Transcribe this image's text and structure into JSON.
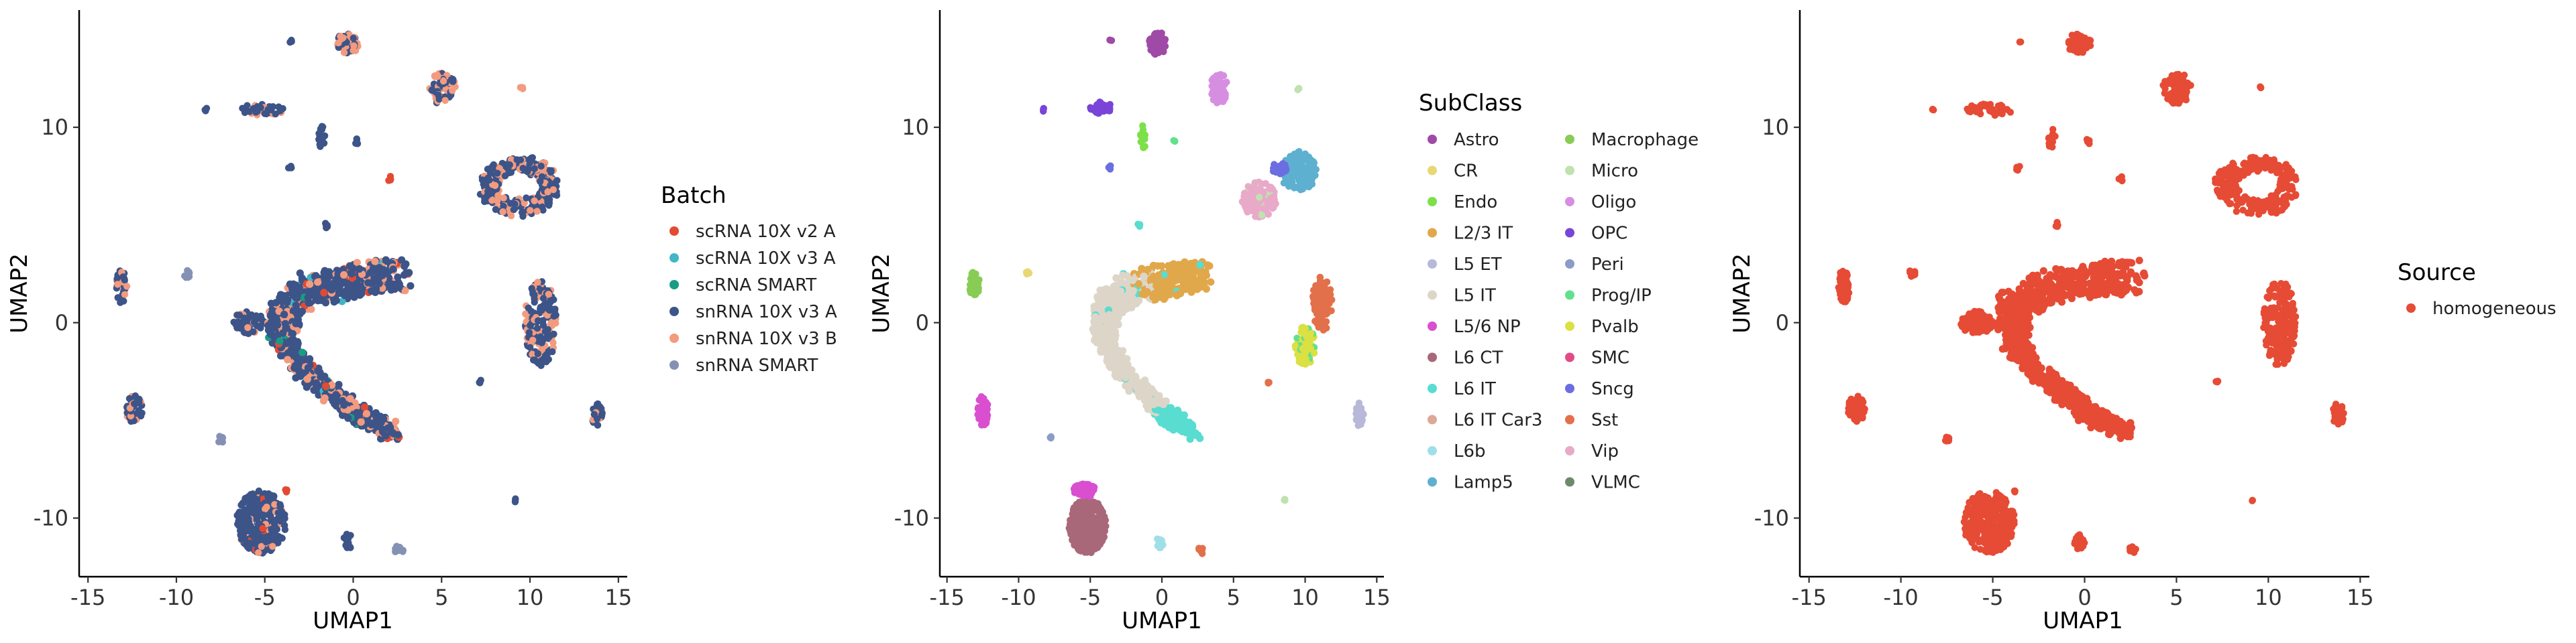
{
  "chart_data": [
    {
      "type": "scatter",
      "xlabel": "UMAP1",
      "ylabel": "UMAP2",
      "xlim": [
        -15.5,
        15.5
      ],
      "ylim": [
        -13.0,
        16.0
      ],
      "x_ticks": [
        -15,
        -10,
        -5,
        0,
        5,
        10,
        15
      ],
      "x_tick_labels": [
        "-15",
        "-10",
        "-5",
        "0",
        "5",
        "10",
        "15"
      ],
      "y_ticks": [
        -10,
        0,
        10
      ],
      "y_tick_labels": [
        "-10",
        "0",
        "10"
      ],
      "grid": false,
      "legend_position": "right",
      "legend_title": "Batch",
      "legend_columns": 1,
      "series": [
        {
          "name": "scRNA 10X v2 A",
          "color": "#e34a33"
        },
        {
          "name": "scRNA 10X v3 A",
          "color": "#41b6c4"
        },
        {
          "name": "scRNA SMART",
          "color": "#1a9b84"
        },
        {
          "name": "snRNA 10X v3 A",
          "color": "#3c5488"
        },
        {
          "name": "snRNA 10X v3 B",
          "color": "#f39b7f"
        },
        {
          "name": "snRNA SMART",
          "color": "#8491b4"
        }
      ],
      "base_color": "#3c5488",
      "clusters": [
        {
          "type": "blob",
          "cx": -5.2,
          "cy": -10.2,
          "rx": 1.4,
          "ry": 1.6,
          "color": "#3c5488",
          "n": 320,
          "accents": [
            [
              "#f39b7f",
              0.12
            ],
            [
              "#e34a33",
              0.03
            ]
          ]
        },
        {
          "type": "blob",
          "cx": -5.9,
          "cy": 0.0,
          "rx": 0.9,
          "ry": 0.6,
          "color": "#3c5488",
          "n": 80,
          "accents": [
            [
              "#f39b7f",
              0.1
            ]
          ]
        },
        {
          "type": "blob",
          "cx": -12.4,
          "cy": -4.4,
          "rx": 0.5,
          "ry": 0.7,
          "color": "#3c5488",
          "n": 50,
          "accents": [
            [
              "#f39b7f",
              0.2
            ]
          ]
        },
        {
          "type": "blob",
          "cx": -13.1,
          "cy": 1.9,
          "rx": 0.3,
          "ry": 0.9,
          "color": "#3c5488",
          "n": 40,
          "accents": [
            [
              "#f39b7f",
              0.3
            ]
          ]
        },
        {
          "type": "blob",
          "cx": -0.3,
          "cy": 14.3,
          "rx": 0.7,
          "ry": 0.5,
          "color": "#f39b7f",
          "n": 60,
          "accents": [
            [
              "#3c5488",
              0.4
            ]
          ]
        },
        {
          "type": "blob",
          "cx": 5.0,
          "cy": 12.0,
          "rx": 0.8,
          "ry": 0.8,
          "color": "#f39b7f",
          "n": 70,
          "accents": [
            [
              "#3c5488",
              0.4
            ]
          ]
        },
        {
          "type": "ring",
          "cx": 9.4,
          "cy": 7.0,
          "rx": 2.3,
          "ry": 1.5,
          "w": 0.5,
          "color": "#3c5488",
          "n": 260,
          "accents": [
            [
              "#f39b7f",
              0.35
            ]
          ]
        },
        {
          "type": "blob",
          "cx": 10.6,
          "cy": 0.0,
          "rx": 0.9,
          "ry": 2.2,
          "color": "#3c5488",
          "n": 190,
          "accents": [
            [
              "#f39b7f",
              0.3
            ]
          ]
        },
        {
          "type": "blob",
          "cx": 13.8,
          "cy": -4.7,
          "rx": 0.3,
          "ry": 0.6,
          "color": "#3c5488",
          "n": 30,
          "accents": [
            [
              "#f39b7f",
              0.2
            ]
          ]
        },
        {
          "type": "blob",
          "cx": -5.2,
          "cy": 10.9,
          "rx": 1.3,
          "ry": 0.3,
          "color": "#3c5488",
          "n": 40,
          "accents": [
            [
              "#f39b7f",
              0.3
            ]
          ]
        },
        {
          "type": "blob",
          "cx": -1.8,
          "cy": 9.5,
          "rx": 0.2,
          "ry": 0.6,
          "color": "#3c5488",
          "n": 14,
          "accents": []
        },
        {
          "type": "blob",
          "cx": -0.3,
          "cy": -11.2,
          "rx": 0.3,
          "ry": 0.4,
          "color": "#3c5488",
          "n": 14,
          "accents": []
        },
        {
          "type": "blob",
          "cx": 2.6,
          "cy": -11.6,
          "rx": 0.3,
          "ry": 0.2,
          "color": "#8491b4",
          "n": 10,
          "accents": []
        },
        {
          "type": "blob",
          "cx": -9.4,
          "cy": 2.5,
          "rx": 0.2,
          "ry": 0.2,
          "color": "#8491b4",
          "n": 8,
          "accents": []
        },
        {
          "type": "blob",
          "cx": -7.5,
          "cy": -6.0,
          "rx": 0.15,
          "ry": 0.2,
          "color": "#8491b4",
          "n": 6,
          "accents": []
        },
        {
          "type": "blob",
          "cx": 0.2,
          "cy": 9.3,
          "rx": 0.15,
          "ry": 0.15,
          "color": "#3c5488",
          "n": 4,
          "accents": []
        },
        {
          "type": "blob",
          "cx": -3.6,
          "cy": 7.9,
          "rx": 0.15,
          "ry": 0.15,
          "color": "#3c5488",
          "n": 4,
          "accents": []
        },
        {
          "type": "blob",
          "cx": 2.0,
          "cy": 7.4,
          "rx": 0.15,
          "ry": 0.15,
          "color": "#e34a33",
          "n": 4,
          "accents": []
        },
        {
          "type": "blob",
          "cx": -1.5,
          "cy": 5.0,
          "rx": 0.1,
          "ry": 0.15,
          "color": "#3c5488",
          "n": 3,
          "accents": []
        },
        {
          "type": "blob",
          "cx": -1.5,
          "cy": 4.9,
          "rx": 0.1,
          "ry": 0.1,
          "color": "#3c5488",
          "n": 3,
          "accents": []
        },
        {
          "type": "blob",
          "cx": 9.2,
          "cy": -9.1,
          "rx": 0.1,
          "ry": 0.1,
          "color": "#3c5488",
          "n": 3,
          "accents": []
        },
        {
          "type": "blob",
          "cx": 7.2,
          "cy": -3.0,
          "rx": 0.1,
          "ry": 0.1,
          "color": "#3c5488",
          "n": 3,
          "accents": []
        },
        {
          "type": "blob",
          "cx": 9.5,
          "cy": 12.0,
          "rx": 0.1,
          "ry": 0.1,
          "color": "#f39b7f",
          "n": 3,
          "accents": []
        },
        {
          "type": "blob",
          "cx": -8.3,
          "cy": 10.9,
          "rx": 0.1,
          "ry": 0.1,
          "color": "#3c5488",
          "n": 3,
          "accents": []
        },
        {
          "type": "blob",
          "cx": -3.5,
          "cy": 14.4,
          "rx": 0.1,
          "ry": 0.1,
          "color": "#3c5488",
          "n": 3,
          "accents": []
        },
        {
          "type": "blob",
          "cx": -3.8,
          "cy": -8.6,
          "rx": 0.1,
          "ry": 0.1,
          "color": "#e34a33",
          "n": 3,
          "accents": []
        }
      ],
      "arm": {
        "color": "#3c5488",
        "accents": [
          [
            "#f39b7f",
            0.2
          ],
          [
            "#e34a33",
            0.04
          ],
          [
            "#1a9b84",
            0.02
          ],
          [
            "#41b6c4",
            0.02
          ]
        ]
      }
    },
    {
      "type": "scatter",
      "xlabel": "UMAP1",
      "ylabel": "UMAP2",
      "xlim": [
        -15.5,
        15.5
      ],
      "ylim": [
        -13.0,
        16.0
      ],
      "x_ticks": [
        -15,
        -10,
        -5,
        0,
        5,
        10,
        15
      ],
      "x_tick_labels": [
        "-15",
        "-10",
        "-5",
        "0",
        "5",
        "10",
        "15"
      ],
      "y_ticks": [
        -10,
        0,
        10
      ],
      "y_tick_labels": [
        "-10",
        "0",
        "10"
      ],
      "grid": false,
      "legend_position": "right",
      "legend_title": "SubClass",
      "legend_columns": 2,
      "series": [
        {
          "name": "Astro",
          "color": "#9e4aa6"
        },
        {
          "name": "CR",
          "color": "#e8d873"
        },
        {
          "name": "Endo",
          "color": "#7ce04a"
        },
        {
          "name": "L2/3 IT",
          "color": "#e1a84b"
        },
        {
          "name": "L5 ET",
          "color": "#b8b8d8"
        },
        {
          "name": "L5 IT",
          "color": "#ddd6c8"
        },
        {
          "name": "L5/6 NP",
          "color": "#d94fd0"
        },
        {
          "name": "L6 CT",
          "color": "#a8687a"
        },
        {
          "name": "L6 IT",
          "color": "#58ddd0"
        },
        {
          "name": "L6 IT Car3",
          "color": "#dca898"
        },
        {
          "name": "L6b",
          "color": "#9fe0e8"
        },
        {
          "name": "Lamp5",
          "color": "#5db0d0"
        },
        {
          "name": "Macrophage",
          "color": "#88cc55"
        },
        {
          "name": "Micro",
          "color": "#bfe2b0"
        },
        {
          "name": "Oligo",
          "color": "#d68fe0"
        },
        {
          "name": "OPC",
          "color": "#7a44d8"
        },
        {
          "name": "Peri",
          "color": "#8a9cc8"
        },
        {
          "name": "Prog/IP",
          "color": "#62e08e"
        },
        {
          "name": "Pvalb",
          "color": "#dbe043"
        },
        {
          "name": "SMC",
          "color": "#e34a88"
        },
        {
          "name": "Sncg",
          "color": "#6a6ee0"
        },
        {
          "name": "Sst",
          "color": "#e2704b"
        },
        {
          "name": "Vip",
          "color": "#e8aac8"
        },
        {
          "name": "VLMC",
          "color": "#6e8a6c"
        }
      ],
      "clusters": [
        {
          "type": "blob",
          "cx": -5.2,
          "cy": -10.4,
          "rx": 1.3,
          "ry": 1.4,
          "color": "#a8687a",
          "n": 300,
          "accents": []
        },
        {
          "type": "blob",
          "cx": -5.4,
          "cy": -8.6,
          "rx": 0.8,
          "ry": 0.35,
          "color": "#d94fd0",
          "n": 60,
          "accents": []
        },
        {
          "type": "blob",
          "cx": -12.5,
          "cy": -4.5,
          "rx": 0.4,
          "ry": 0.8,
          "color": "#d94fd0",
          "n": 50,
          "accents": []
        },
        {
          "type": "blob",
          "cx": -13.1,
          "cy": 2.0,
          "rx": 0.4,
          "ry": 0.6,
          "color": "#88cc55",
          "n": 40,
          "accents": []
        },
        {
          "type": "blob",
          "cx": -0.3,
          "cy": 14.3,
          "rx": 0.6,
          "ry": 0.6,
          "color": "#9e4aa6",
          "n": 60,
          "accents": []
        },
        {
          "type": "blob",
          "cx": 4.0,
          "cy": 12.0,
          "rx": 0.6,
          "ry": 0.8,
          "color": "#d68fe0",
          "n": 60,
          "accents": []
        },
        {
          "type": "blob",
          "cx": -4.2,
          "cy": 11.0,
          "rx": 0.8,
          "ry": 0.3,
          "color": "#7a44d8",
          "n": 35,
          "accents": []
        },
        {
          "type": "blob",
          "cx": -1.3,
          "cy": 9.5,
          "rx": 0.2,
          "ry": 0.6,
          "color": "#7ce04a",
          "n": 14,
          "accents": []
        },
        {
          "type": "blob",
          "cx": 6.8,
          "cy": 6.3,
          "rx": 1.2,
          "ry": 0.9,
          "color": "#e8aac8",
          "n": 120,
          "accents": [
            [
              "#bfe2b0",
              0.1
            ]
          ]
        },
        {
          "type": "blob",
          "cx": 9.5,
          "cy": 7.8,
          "rx": 1.3,
          "ry": 1.1,
          "color": "#5db0d0",
          "n": 140,
          "accents": []
        },
        {
          "type": "blob",
          "cx": 8.2,
          "cy": 7.9,
          "rx": 0.5,
          "ry": 0.3,
          "color": "#6a6ee0",
          "n": 30,
          "accents": []
        },
        {
          "type": "blob",
          "cx": 11.2,
          "cy": 1.0,
          "rx": 0.7,
          "ry": 1.4,
          "color": "#e2704b",
          "n": 110,
          "accents": []
        },
        {
          "type": "blob",
          "cx": 10.0,
          "cy": -1.2,
          "rx": 0.7,
          "ry": 1.0,
          "color": "#dbe043",
          "n": 90,
          "accents": [
            [
              "#62e08e",
              0.15
            ]
          ]
        },
        {
          "type": "blob",
          "cx": 13.8,
          "cy": -4.7,
          "rx": 0.3,
          "ry": 0.6,
          "color": "#b8b8d8",
          "n": 30,
          "accents": []
        },
        {
          "type": "blob",
          "cx": 2.7,
          "cy": -11.7,
          "rx": 0.2,
          "ry": 0.2,
          "color": "#e2704b",
          "n": 8,
          "accents": []
        },
        {
          "type": "blob",
          "cx": -0.2,
          "cy": -11.3,
          "rx": 0.3,
          "ry": 0.3,
          "color": "#9fe0e8",
          "n": 14,
          "accents": []
        },
        {
          "type": "blob",
          "cx": -9.4,
          "cy": 2.5,
          "rx": 0.15,
          "ry": 0.15,
          "color": "#e8d873",
          "n": 6,
          "accents": []
        },
        {
          "type": "blob",
          "cx": -7.8,
          "cy": -5.9,
          "rx": 0.1,
          "ry": 0.15,
          "color": "#8a9cc8",
          "n": 4,
          "accents": []
        },
        {
          "type": "blob",
          "cx": -3.6,
          "cy": 7.9,
          "rx": 0.15,
          "ry": 0.15,
          "color": "#6a6ee0",
          "n": 4,
          "accents": []
        },
        {
          "type": "blob",
          "cx": 0.9,
          "cy": 9.3,
          "rx": 0.1,
          "ry": 0.1,
          "color": "#62e08e",
          "n": 3,
          "accents": []
        },
        {
          "type": "blob",
          "cx": -1.6,
          "cy": 5.0,
          "rx": 0.1,
          "ry": 0.1,
          "color": "#58ddd0",
          "n": 3,
          "accents": []
        },
        {
          "type": "blob",
          "cx": 8.6,
          "cy": -9.0,
          "rx": 0.1,
          "ry": 0.1,
          "color": "#bfe2b0",
          "n": 3,
          "accents": []
        },
        {
          "type": "blob",
          "cx": 7.4,
          "cy": -3.1,
          "rx": 0.1,
          "ry": 0.1,
          "color": "#e2704b",
          "n": 3,
          "accents": []
        },
        {
          "type": "blob",
          "cx": 9.5,
          "cy": 12.0,
          "rx": 0.1,
          "ry": 0.1,
          "color": "#bfe2b0",
          "n": 3,
          "accents": []
        },
        {
          "type": "blob",
          "cx": -8.3,
          "cy": 10.9,
          "rx": 0.1,
          "ry": 0.1,
          "color": "#7a44d8",
          "n": 3,
          "accents": []
        },
        {
          "type": "blob",
          "cx": -3.6,
          "cy": 14.4,
          "rx": 0.1,
          "ry": 0.1,
          "color": "#9e4aa6",
          "n": 3,
          "accents": []
        }
      ],
      "arm_regions": [
        {
          "tmin": 0.0,
          "tmax": 0.22,
          "color": "#e1a84b"
        },
        {
          "tmin": 0.22,
          "tmax": 0.82,
          "color": "#ddd6c8"
        },
        {
          "tmin": 0.82,
          "tmax": 1.0,
          "color": "#58ddd0"
        }
      ]
    },
    {
      "type": "scatter",
      "xlabel": "UMAP1",
      "ylabel": "UMAP2",
      "xlim": [
        -15.5,
        15.5
      ],
      "ylim": [
        -13.0,
        16.0
      ],
      "x_ticks": [
        -15,
        -10,
        -5,
        0,
        5,
        10,
        15
      ],
      "x_tick_labels": [
        "-15",
        "-10",
        "-5",
        "0",
        "5",
        "10",
        "15"
      ],
      "y_ticks": [
        -10,
        0,
        10
      ],
      "y_tick_labels": [
        "-10",
        "0",
        "10"
      ],
      "grid": false,
      "legend_position": "right",
      "legend_title": "Source",
      "legend_columns": 1,
      "series": [
        {
          "name": "homogeneous",
          "color": "#e64b35"
        }
      ],
      "single_color": "#e64b35"
    }
  ]
}
